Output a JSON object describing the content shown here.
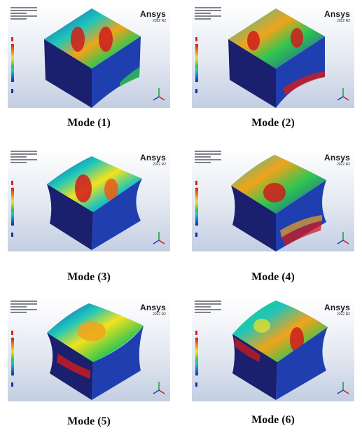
{
  "panels": [
    {
      "caption": "Mode (1)",
      "brand": "Ansys",
      "version": "2022 R2"
    },
    {
      "caption": "Mode (2)",
      "brand": "Ansys",
      "version": "2022 R2"
    },
    {
      "caption": "Mode (3)",
      "brand": "Ansys",
      "version": "2022 R2"
    },
    {
      "caption": "Mode (4)",
      "brand": "Ansys",
      "version": "2022 R2"
    },
    {
      "caption": "Mode (5)",
      "brand": "Ansys",
      "version": "2022 R2"
    },
    {
      "caption": "Mode (6)",
      "brand": "Ansys",
      "version": "2022 R2"
    }
  ],
  "colors": {
    "background_top": "#ffffff",
    "background_bottom": "#c3cee2",
    "solid_dark": "#1a1f6e",
    "solid_blue": "#1f3fb0",
    "hot": "#d21b1b",
    "warm": "#f1a31a",
    "mid": "#2fc651",
    "cool": "#1dc6bc"
  }
}
